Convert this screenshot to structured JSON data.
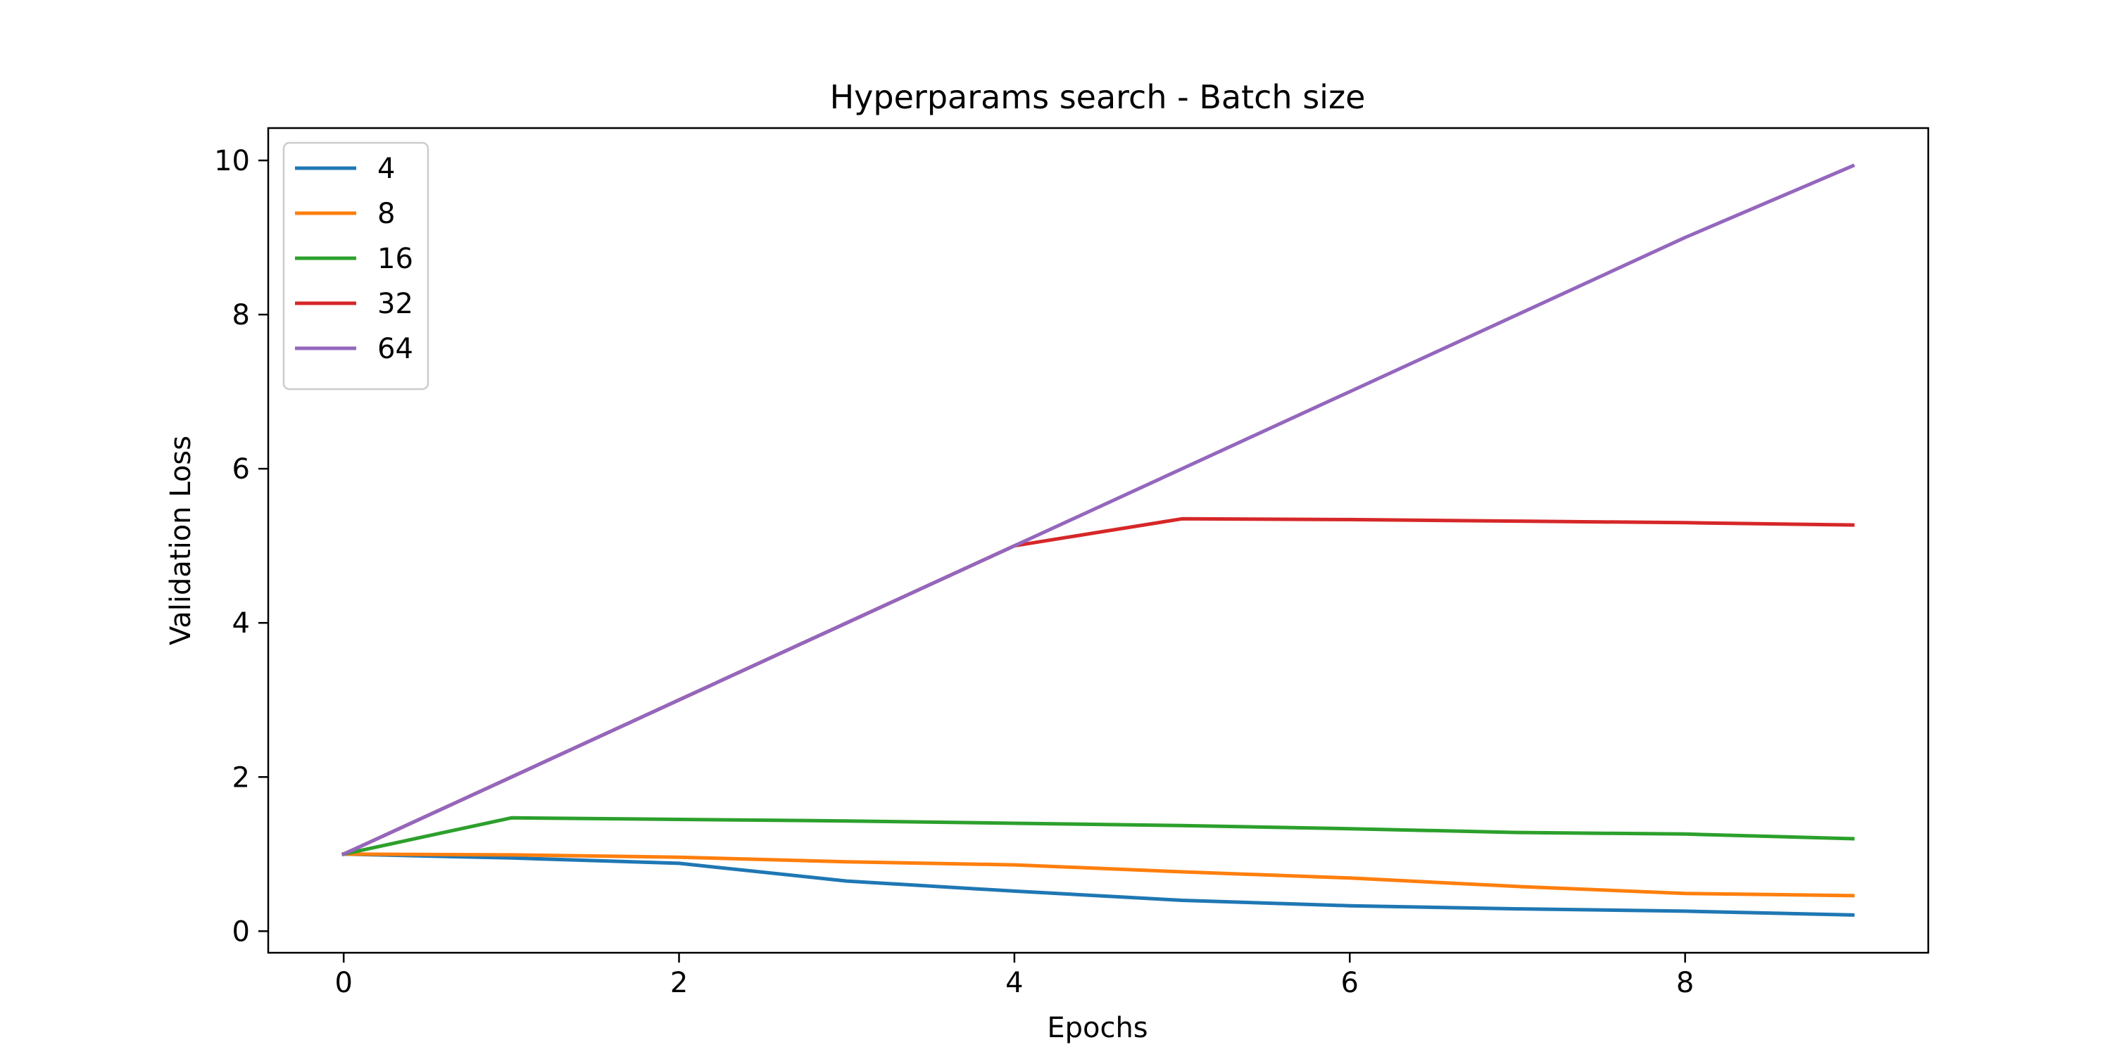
{
  "chart_data": {
    "type": "line",
    "title": "Hyperparams search - Batch size",
    "xlabel": "Epochs",
    "ylabel": "Validation Loss",
    "xlim": [
      -0.45,
      9.45
    ],
    "ylim": [
      -0.28,
      10.42
    ],
    "xticks": [
      0,
      2,
      4,
      6,
      8
    ],
    "yticks": [
      0,
      2,
      4,
      6,
      8,
      10
    ],
    "grid": false,
    "legend_position": "upper-left",
    "x": [
      0,
      1,
      2,
      3,
      4,
      5,
      6,
      7,
      8,
      9
    ],
    "series": [
      {
        "name": "4",
        "color": "#1f77b4",
        "values": [
          1.0,
          0.95,
          0.88,
          0.65,
          0.52,
          0.4,
          0.33,
          0.29,
          0.26,
          0.21
        ]
      },
      {
        "name": "8",
        "color": "#ff7f0e",
        "values": [
          1.0,
          0.99,
          0.96,
          0.9,
          0.86,
          0.77,
          0.69,
          0.58,
          0.49,
          0.46
        ]
      },
      {
        "name": "16",
        "color": "#2ca02c",
        "values": [
          1.0,
          1.47,
          1.45,
          1.43,
          1.4,
          1.37,
          1.33,
          1.28,
          1.26,
          1.2
        ]
      },
      {
        "name": "32",
        "color": "#d62728",
        "values": [
          1.0,
          2.0,
          3.0,
          4.0,
          5.0,
          5.35,
          5.34,
          5.32,
          5.3,
          5.27
        ]
      },
      {
        "name": "64",
        "color": "#9467bd",
        "values": [
          1.0,
          2.0,
          3.0,
          4.0,
          5.0,
          6.0,
          7.0,
          8.0,
          9.0,
          9.93
        ]
      }
    ]
  }
}
